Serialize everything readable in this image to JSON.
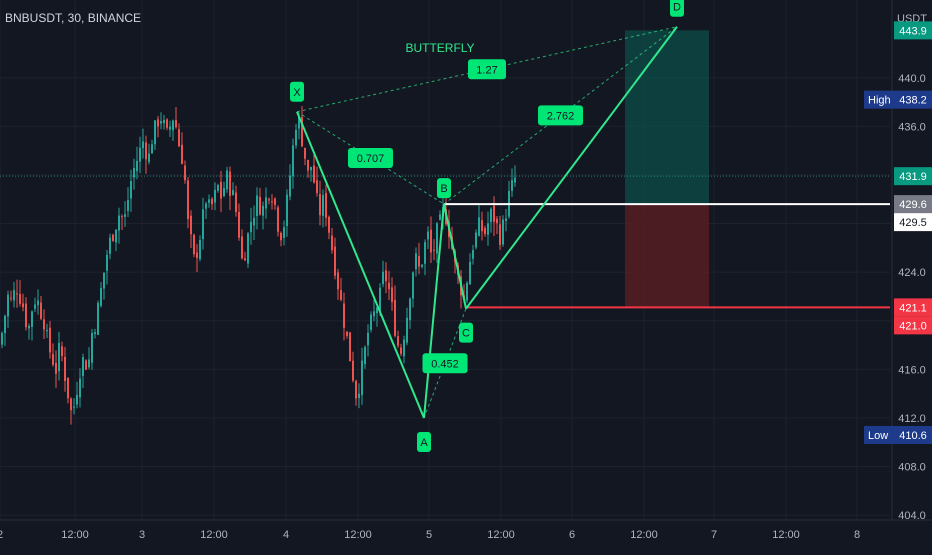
{
  "header": {
    "symbol": "BNBUSDT, 30, BINANCE",
    "currency": "USDT"
  },
  "colors": {
    "bg": "#131722",
    "up": "#26a69a",
    "down": "#ef5350",
    "pattern": "#2fe88c",
    "label_bg": "#00e676",
    "entry": "#ffffff",
    "stop": "#f23645",
    "high_low_bg": "#1e3a8a",
    "axis_text": "#b2b5be"
  },
  "chart_data": {
    "type": "candlestick",
    "title": "BUTTERFLY",
    "x_ticks": [
      "2",
      "12:00",
      "3",
      "12:00",
      "4",
      "12:00",
      "5",
      "12:00",
      "6",
      "12:00",
      "7",
      "12:00",
      "8"
    ],
    "y_ticks": [
      440.0,
      436.0,
      432.0,
      428.0,
      424.0,
      420.0,
      416.0,
      412.0,
      408.0,
      404.0
    ],
    "ylim": [
      403.6,
      446.4
    ],
    "series_path": [
      [
        0,
        418
      ],
      [
        4,
        420
      ],
      [
        8,
        422
      ],
      [
        12,
        421.5
      ],
      [
        16,
        423
      ],
      [
        20,
        422
      ],
      [
        24,
        421
      ],
      [
        28,
        419
      ],
      [
        32,
        421
      ],
      [
        36,
        422
      ],
      [
        40,
        421
      ],
      [
        44,
        420
      ],
      [
        48,
        418
      ],
      [
        52,
        417
      ],
      [
        56,
        416
      ],
      [
        60,
        418
      ],
      [
        64,
        416
      ],
      [
        68,
        414
      ],
      [
        72,
        412
      ],
      [
        76,
        414
      ],
      [
        80,
        416
      ],
      [
        84,
        417
      ],
      [
        88,
        416
      ],
      [
        92,
        419
      ],
      [
        96,
        420
      ],
      [
        100,
        422
      ],
      [
        104,
        424
      ],
      [
        108,
        426
      ],
      [
        112,
        427
      ],
      [
        116,
        428
      ],
      [
        120,
        429
      ],
      [
        124,
        428
      ],
      [
        128,
        430
      ],
      [
        132,
        432
      ],
      [
        136,
        433
      ],
      [
        140,
        434
      ],
      [
        144,
        435
      ],
      [
        148,
        433
      ],
      [
        152,
        435
      ],
      [
        156,
        436
      ],
      [
        160,
        437
      ],
      [
        164,
        436
      ],
      [
        168,
        435
      ],
      [
        172,
        437
      ],
      [
        176,
        436
      ],
      [
        180,
        434
      ],
      [
        184,
        433
      ],
      [
        186,
        430
      ],
      [
        188,
        428
      ],
      [
        190,
        427
      ],
      [
        194,
        425
      ],
      [
        198,
        426
      ],
      [
        202,
        428
      ],
      [
        206,
        430
      ],
      [
        210,
        429
      ],
      [
        214,
        430
      ],
      [
        218,
        431
      ],
      [
        222,
        430
      ],
      [
        226,
        432
      ],
      [
        230,
        431
      ],
      [
        234,
        430
      ],
      [
        238,
        428
      ],
      [
        242,
        425
      ],
      [
        246,
        426
      ],
      [
        250,
        428
      ],
      [
        254,
        429
      ],
      [
        258,
        430
      ],
      [
        262,
        429
      ],
      [
        266,
        430
      ],
      [
        270,
        431
      ],
      [
        274,
        430
      ],
      [
        278,
        428
      ],
      [
        282,
        427
      ],
      [
        286,
        429
      ],
      [
        290,
        432
      ],
      [
        294,
        435
      ],
      [
        297,
        437
      ],
      [
        300,
        436
      ],
      [
        304,
        434
      ],
      [
        308,
        432
      ],
      [
        312,
        433
      ],
      [
        316,
        430
      ],
      [
        320,
        429
      ],
      [
        324,
        430
      ],
      [
        328,
        428
      ],
      [
        332,
        426
      ],
      [
        336,
        424
      ],
      [
        340,
        422
      ],
      [
        344,
        420
      ],
      [
        348,
        418
      ],
      [
        352,
        416
      ],
      [
        356,
        414
      ],
      [
        360,
        415
      ],
      [
        364,
        417
      ],
      [
        368,
        419
      ],
      [
        372,
        420
      ],
      [
        376,
        421
      ],
      [
        380,
        422
      ],
      [
        384,
        424
      ],
      [
        388,
        423
      ],
      [
        392,
        421
      ],
      [
        396,
        419
      ],
      [
        400,
        417
      ],
      [
        404,
        419
      ],
      [
        408,
        421
      ],
      [
        412,
        424
      ],
      [
        416,
        425
      ],
      [
        420,
        424
      ],
      [
        424,
        426
      ],
      [
        428,
        427
      ],
      [
        432,
        425
      ],
      [
        436,
        427
      ],
      [
        440,
        428
      ],
      [
        444,
        429.2
      ],
      [
        448,
        428
      ],
      [
        452,
        426
      ],
      [
        456,
        424
      ],
      [
        460,
        423
      ],
      [
        464,
        421.8
      ],
      [
        468,
        424
      ],
      [
        472,
        426
      ],
      [
        476,
        427
      ],
      [
        480,
        428
      ],
      [
        484,
        427
      ],
      [
        488,
        428
      ],
      [
        492,
        429
      ],
      [
        496,
        428
      ],
      [
        500,
        427
      ],
      [
        504,
        428
      ],
      [
        508,
        430
      ],
      [
        512,
        431
      ],
      [
        516,
        431.9
      ]
    ],
    "pattern_points": {
      "X": {
        "x": 297,
        "y": 437.2
      },
      "A": {
        "x": 424,
        "y": 412.0
      },
      "B": {
        "x": 444,
        "y": 429.6
      },
      "C": {
        "x": 466,
        "y": 421.0
      },
      "D": {
        "x": 677,
        "y": 444.2
      }
    },
    "ratios": [
      "0.707",
      "0.452",
      "1.27",
      "2.762"
    ],
    "levels": {
      "target": 443.9,
      "entry": 429.6,
      "entry2": 429.5,
      "stop": 421.1,
      "stop2": 421.0,
      "current": 431.9,
      "high": 438.2,
      "low": 410.6
    },
    "position_box": {
      "x_start": 625,
      "x_end": 709,
      "target": 443.9,
      "entry": 429.6,
      "stop": 421.1
    }
  },
  "axis_labels": {
    "target": "443.9",
    "current": "431.9",
    "entry": "429.6",
    "entry2": "429.5",
    "stop": "421.1",
    "stop2": "421.0",
    "high_word": "High",
    "high_value": "438.2",
    "low_word": "Low",
    "low_value": "410.6"
  }
}
